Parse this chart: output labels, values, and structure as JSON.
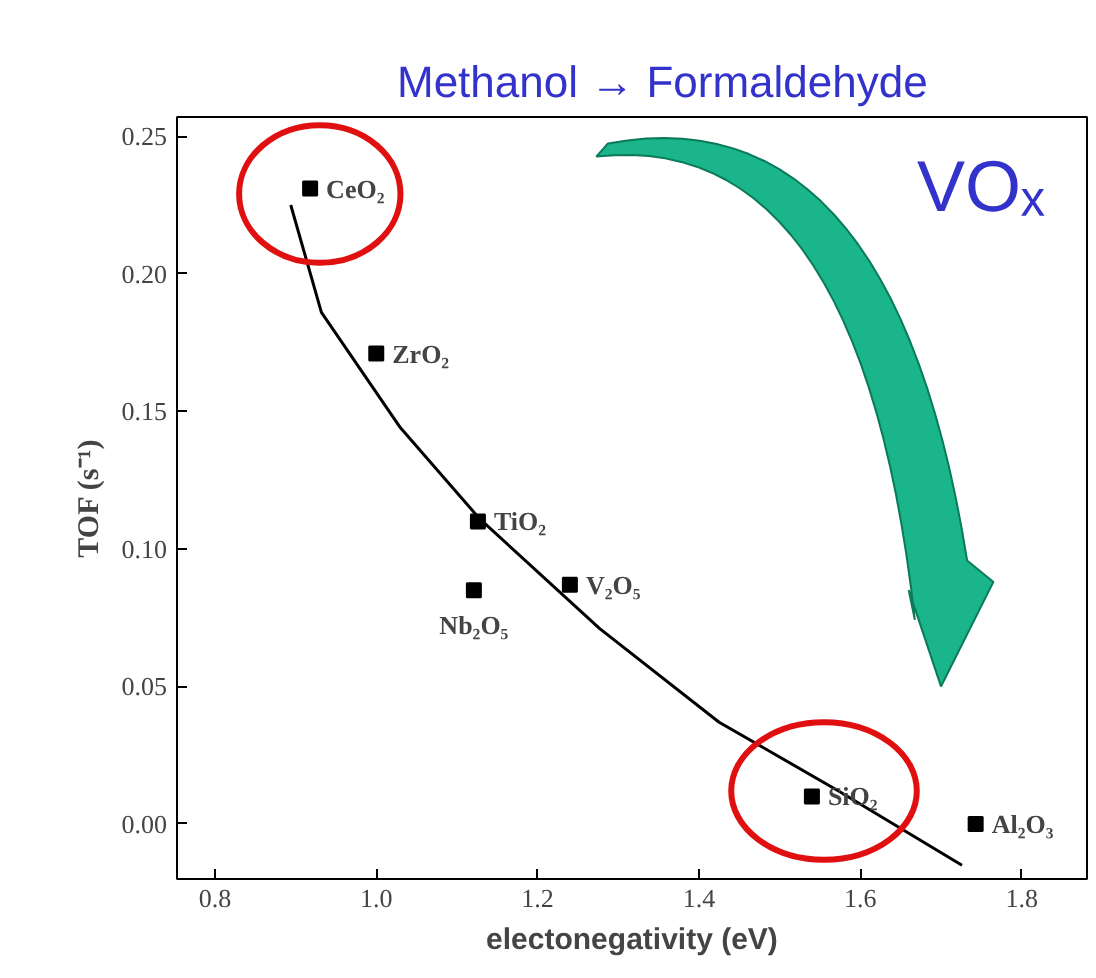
{
  "chart_data": {
    "type": "scatter",
    "title": "Methanol → Formaldehyde",
    "xlabel": "electonegativity (eV)",
    "ylabel": "TOF (s⁻¹)",
    "x": [
      0.918,
      1.0,
      1.126,
      1.121,
      1.24,
      1.54,
      1.743
    ],
    "series": [
      {
        "color": "#000000",
        "marker": "square",
        "values": [
          0.231,
          0.171,
          0.11,
          0.085,
          0.087,
          0.01,
          0.0
        ]
      },
      {
        "type": "line",
        "color": "#000000",
        "marker": "none",
        "x": [
          0.894,
          0.932,
          1.03,
          1.128,
          1.277,
          1.425,
          1.573,
          1.726
        ],
        "values": [
          0.225,
          0.186,
          0.144,
          0.111,
          0.071,
          0.037,
          0.012,
          -0.015
        ]
      }
    ],
    "xlim": [
      0.753,
      1.881
    ],
    "ylim": [
      -0.02,
      0.257
    ],
    "xticks": [
      {
        "value": 0.8,
        "label": "0.8"
      },
      {
        "value": 1.0,
        "label": "1.0"
      },
      {
        "value": 1.2,
        "label": "1.2"
      },
      {
        "value": 1.4,
        "label": "1.4"
      },
      {
        "value": 1.6,
        "label": "1.6"
      },
      {
        "value": 1.8,
        "label": "1.8"
      }
    ],
    "yticks": [
      {
        "value": 0,
        "label": "0.00"
      },
      {
        "value": 0.05,
        "label": "0.05"
      },
      {
        "value": 0.1,
        "label": "0.10"
      },
      {
        "value": 0.15,
        "label": "0.15"
      },
      {
        "value": 0.2,
        "label": "0.20"
      },
      {
        "value": 0.25,
        "label": "0.25"
      }
    ],
    "grid": false,
    "annotations": [
      "VOₓ",
      {
        "text": "CeO₂",
        "x": 0.918,
        "y": 0.231
      },
      {
        "text": "ZrO₂",
        "x": 1.0,
        "y": 0.171
      },
      {
        "text": "TiO₂",
        "x": 1.126,
        "y": 0.11
      },
      {
        "text": "Nb₂O₅",
        "x": 1.121,
        "y": 0.085
      },
      {
        "text": "V₂O₅",
        "x": 1.24,
        "y": 0.087
      },
      {
        "text": "SiO₂",
        "x": 1.54,
        "y": 0.01
      },
      {
        "text": "Al₂O₃",
        "x": 1.743,
        "y": 0.0
      }
    ]
  }
}
